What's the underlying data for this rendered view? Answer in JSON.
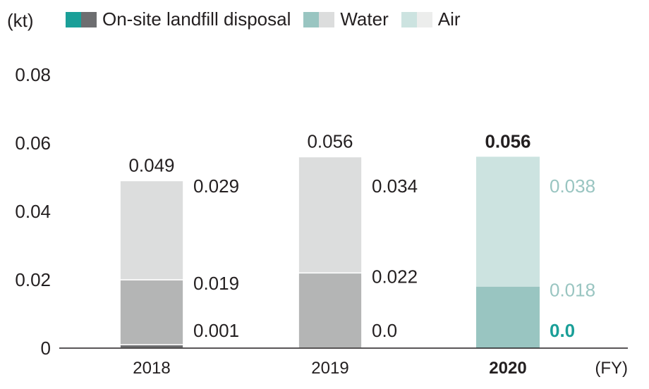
{
  "chart_data": {
    "type": "bar",
    "stacked": true,
    "y_unit": "(kt)",
    "x_unit": "(FY)",
    "ylim": [
      0,
      0.08
    ],
    "yticks": [
      "0",
      "0.02",
      "0.04",
      "0.06",
      "0.08"
    ],
    "ytick_values": [
      0,
      0.02,
      0.04,
      0.06,
      0.08
    ],
    "categories": [
      "2018",
      "2019",
      "2020"
    ],
    "highlight_category": "2020",
    "series": [
      {
        "name": "On-site landfill disposal",
        "values": [
          0.001,
          0.0,
          0.0
        ],
        "labels": [
          "0.001",
          "0.0",
          "0.0"
        ],
        "color": "#6d6e70",
        "highlight_color": "#1a9f98"
      },
      {
        "name": "Water",
        "values": [
          0.019,
          0.022,
          0.018
        ],
        "labels": [
          "0.019",
          "0.022",
          "0.018"
        ],
        "color": "#b4b5b5",
        "highlight_color": "#99c5c1"
      },
      {
        "name": "Air",
        "values": [
          0.029,
          0.034,
          0.038
        ],
        "labels": [
          "0.029",
          "0.034",
          "0.038"
        ],
        "color": "#dcdddd",
        "highlight_color": "#cce3e0"
      }
    ],
    "totals": [
      "0.049",
      "0.056",
      "0.056"
    ],
    "legend_swatches": [
      [
        "#1a9f98",
        "#6d6e70"
      ],
      [
        "#99c5c1",
        "#dcdddd"
      ],
      [
        "#cce3e0",
        "#ecedec"
      ]
    ],
    "highlight_label_colors": [
      "#1a9f98",
      "#99c5c1",
      "#99c5c1"
    ]
  }
}
